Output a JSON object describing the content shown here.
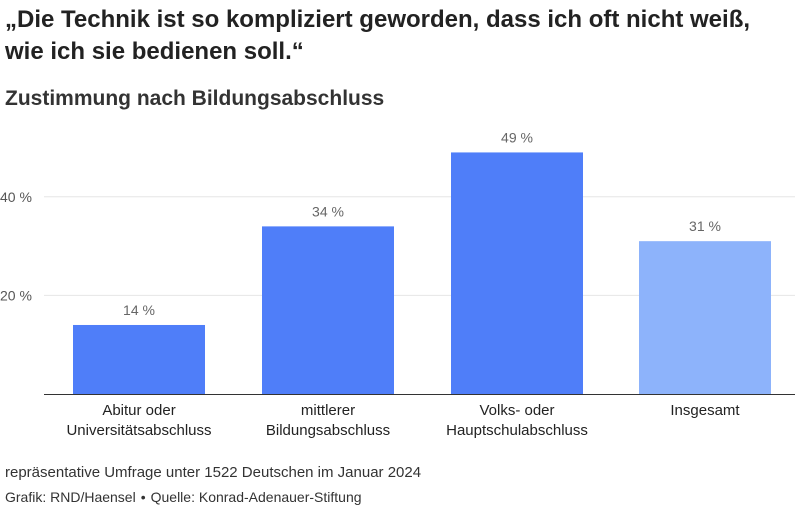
{
  "header": {
    "title": "„Die Technik ist so kompliziert geworden, dass ich oft nicht weiß, wie ich sie bedienen soll.“",
    "subtitle": "Zustimmung nach Bildungsabschluss"
  },
  "footer": {
    "note": "repräsentative Umfrage unter 1522 Deutschen im Januar 2024",
    "credit_graphic": "Grafik: RND/Haensel",
    "credit_separator": "•",
    "credit_source": "Quelle: Konrad-Adenauer-Stiftung"
  },
  "colors": {
    "bar": "#4f7ef9",
    "bar_highlight": "#8db3fb",
    "grid": "#e6e6e6",
    "axis": "#333333"
  },
  "chart_data": {
    "type": "bar",
    "title": "„Die Technik ist so kompliziert geworden, dass ich oft nicht weiß, wie ich sie bedienen soll.“",
    "subtitle": "Zustimmung nach Bildungsabschluss",
    "categories": [
      [
        "Abitur oder",
        "Universitätsabschluss"
      ],
      [
        "mittlerer",
        "Bildungsabschluss"
      ],
      [
        "Volks- oder",
        "Hauptschulabschluss"
      ],
      [
        "Insgesamt"
      ]
    ],
    "values": [
      14,
      34,
      49,
      31
    ],
    "value_labels": [
      "14 %",
      "34 %",
      "49 %",
      "31 %"
    ],
    "highlight": [
      false,
      false,
      false,
      true
    ],
    "yticks": [
      20,
      40
    ],
    "ytick_labels": [
      "20 %",
      "40 %"
    ],
    "ylim": [
      0,
      55
    ],
    "grid": true
  }
}
